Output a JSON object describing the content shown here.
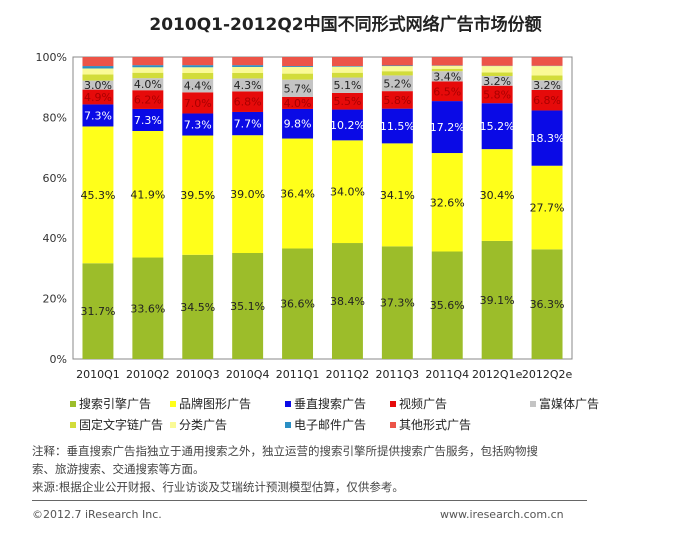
{
  "chart_data": {
    "type": "bar",
    "stacked": true,
    "title": "2010Q1-2012Q2中国不同形式网络广告市场份额",
    "categories": [
      "2010Q1",
      "2010Q2",
      "2010Q3",
      "2010Q4",
      "2011Q1",
      "2011Q2",
      "2011Q3",
      "2011Q4",
      "2012Q1e",
      "2012Q2e"
    ],
    "ylim": [
      0,
      100
    ],
    "yticks": [
      "0%",
      "20%",
      "40%",
      "60%",
      "80%",
      "100%"
    ],
    "legend_position": "bottom",
    "series": [
      {
        "name": "搜索引擎广告",
        "color": "#9cbd2a",
        "labeled": true,
        "values": [
          31.7,
          33.6,
          34.5,
          35.1,
          36.6,
          38.4,
          37.3,
          35.6,
          39.1,
          36.3
        ]
      },
      {
        "name": "品牌图形广告",
        "color": "#ffff1a",
        "labeled": true,
        "values": [
          45.3,
          41.9,
          39.5,
          39.0,
          36.4,
          34.0,
          34.1,
          32.6,
          30.4,
          27.7
        ]
      },
      {
        "name": "垂直搜索广告",
        "color": "#0a0ae6",
        "labeled": true,
        "values": [
          7.3,
          7.3,
          7.3,
          7.7,
          9.8,
          10.2,
          11.5,
          17.2,
          15.2,
          18.3
        ]
      },
      {
        "name": "视频广告",
        "color": "#e60a0a",
        "labeled": true,
        "values": [
          4.9,
          6.2,
          7.0,
          6.8,
          4.0,
          5.5,
          5.8,
          6.5,
          5.8,
          6.8
        ]
      },
      {
        "name": "富媒体广告",
        "color": "#c4c4c4",
        "labeled": true,
        "values": [
          3.0,
          4.0,
          4.4,
          4.3,
          5.7,
          5.1,
          5.2,
          3.4,
          3.2,
          3.2
        ]
      },
      {
        "name": "固定文字链广告",
        "color": "#d2dc3a",
        "labeled": false,
        "values": [
          2.0,
          1.8,
          2.0,
          1.8,
          2.0,
          1.6,
          1.4,
          0.8,
          1.2,
          1.6
        ]
      },
      {
        "name": "分类广告",
        "color": "#fafa96",
        "labeled": false,
        "values": [
          2.0,
          1.8,
          1.9,
          2.0,
          2.2,
          2.0,
          1.7,
          1.0,
          2.1,
          3.1
        ]
      },
      {
        "name": "电子邮件广告",
        "color": "#2a8fc4",
        "labeled": false,
        "values": [
          0.8,
          0.7,
          0.7,
          0.6,
          0.3,
          0.2,
          0.2,
          0.1,
          0.1,
          0.1
        ]
      },
      {
        "name": "其他形式广告",
        "color": "#ec5448",
        "labeled": false,
        "values": [
          3.0,
          2.7,
          2.7,
          2.7,
          3.0,
          3.0,
          2.8,
          2.8,
          2.9,
          2.9
        ]
      }
    ]
  },
  "notes": {
    "line1": "注释：垂直搜索广告指独立于通用搜索之外，独立运营的搜索引擎所提供搜索广告服务，包括购物搜",
    "line2": "索、旅游搜索、交通搜索等方面。",
    "line3": "来源:根据企业公开财报、行业访谈及艾瑞统计预测模型估算，仅供参考。"
  },
  "footer": {
    "copyright": "©2012.7 iResearch Inc.",
    "url": "www.iresearch.com.cn"
  }
}
